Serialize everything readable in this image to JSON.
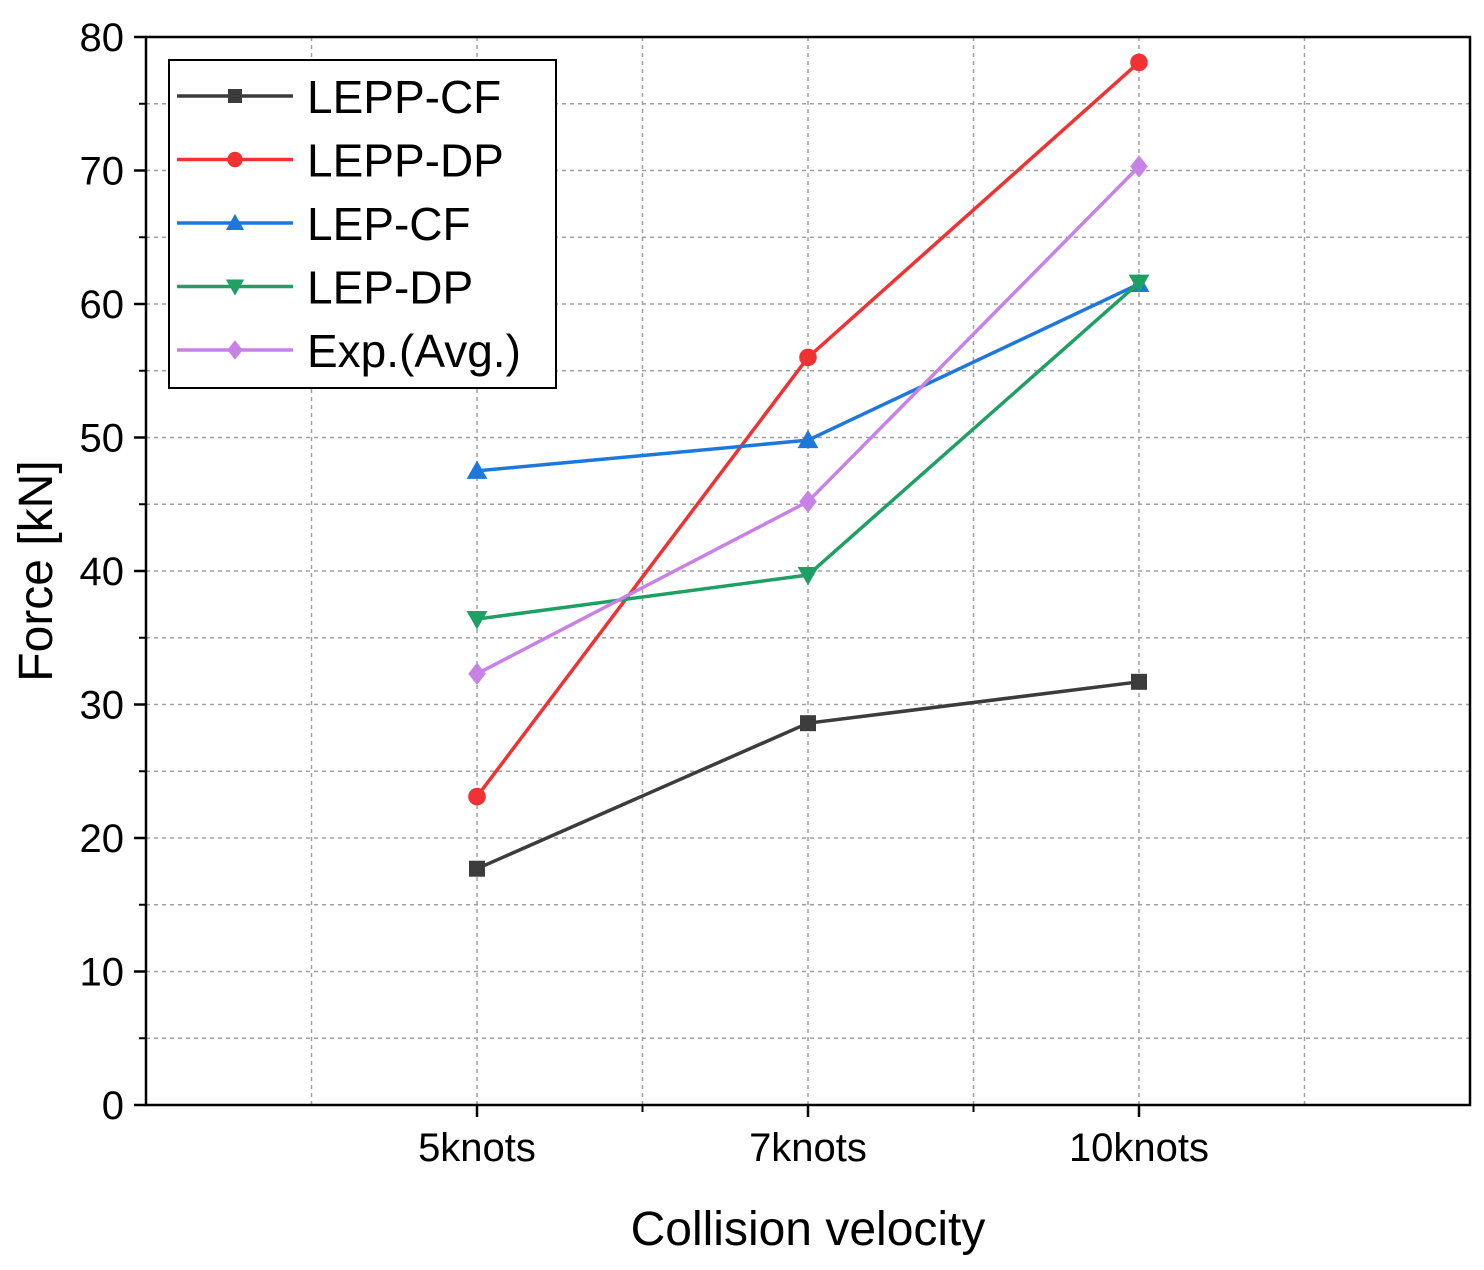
{
  "chart_data": {
    "type": "line",
    "title": "",
    "xlabel": "Collision velocity",
    "ylabel": "Force [kN]",
    "categories": [
      "5knots",
      "7knots",
      "10knots"
    ],
    "ylim": [
      0,
      80
    ],
    "yticks": [
      0,
      10,
      20,
      30,
      40,
      50,
      60,
      70,
      80
    ],
    "grid": true,
    "legend_position": "top-left",
    "series": [
      {
        "name": "LEPP-CF",
        "color": "#3c3c3c",
        "marker": "square",
        "values": [
          17.7,
          28.6,
          31.7
        ]
      },
      {
        "name": "LEPP-DP",
        "color": "#f03232",
        "marker": "circle",
        "values": [
          23.1,
          56.0,
          78.1
        ]
      },
      {
        "name": "LEP-CF",
        "color": "#1e78dc",
        "marker": "triangle-up",
        "values": [
          47.5,
          49.8,
          61.5
        ]
      },
      {
        "name": "LEP-DP",
        "color": "#1ea064",
        "marker": "triangle-down",
        "values": [
          36.4,
          39.7,
          61.6
        ]
      },
      {
        "name": "Exp.(Avg.)",
        "color": "#c882e6",
        "marker": "diamond",
        "values": [
          32.3,
          45.2,
          70.3
        ]
      }
    ]
  }
}
